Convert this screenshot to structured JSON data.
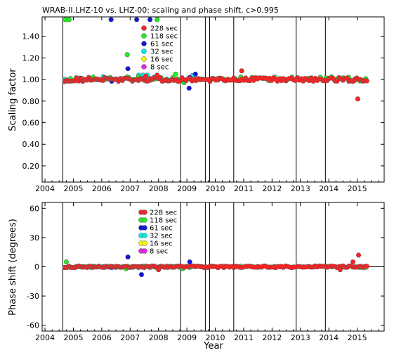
{
  "chart_data": {
    "title": "WRAB-II.LHZ-10 vs. LHZ-00: scaling and phase shift, c>0.995",
    "series_colors": {
      "228 sec": "#ff2222",
      "118 sec": "#22ee22",
      "61 sec": "#1111dd",
      "32 sec": "#00eeee",
      "16 sec": "#ffff00",
      "8 sec": "#ee22ee"
    },
    "legend": [
      "228 sec",
      "118 sec",
      "61 sec",
      "32 sec",
      "16 sec",
      "8 sec"
    ],
    "event_lines_x": [
      2004.63,
      2008.78,
      2009.65,
      2009.8,
      2010.65,
      2012.85,
      2013.88
    ],
    "panels": [
      {
        "id": "scaling",
        "type": "scatter",
        "ylabel": "Scaling factor",
        "xlim": [
          2003.9,
          2015.95
        ],
        "ylim": [
          0.05,
          1.58
        ],
        "yticks": [
          0.2,
          0.4,
          0.6,
          0.8,
          1.0,
          1.2,
          1.4
        ],
        "ytick_labels": [
          "0.20",
          "0.40",
          "0.60",
          "0.80",
          "1.00",
          "1.20",
          "1.40"
        ],
        "xticks": [
          2004,
          2005,
          2006,
          2007,
          2008,
          2009,
          2010,
          2011,
          2012,
          2013,
          2014,
          2015
        ],
        "xtick_labels": [
          "2004",
          "2005",
          "2006",
          "2007",
          "2008",
          "2009",
          "2010",
          "2011",
          "2012",
          "2013",
          "2014",
          "2015"
        ],
        "ref_line": 1.0,
        "ref_segments": [
          [
            2004.63,
            2006.9
          ],
          [
            2007.5,
            2008.8
          ]
        ],
        "series": [
          {
            "name": "228 sec",
            "start": 2004.7,
            "end": 2015.4,
            "step": 0.07,
            "base": 1.0,
            "jitter": 0.018,
            "extra": [
              [
                2010.93,
                1.08
              ],
              [
                2015.02,
                0.82
              ],
              [
                2007.55,
                1.03
              ],
              [
                2007.95,
                1.04
              ],
              [
                2014.8,
                0.99
              ]
            ]
          },
          {
            "name": "118 sec",
            "start": 2004.7,
            "end": 2015.4,
            "step": 0.2,
            "base": 1.005,
            "jitter": 0.02,
            "extra": [
              [
                2004.72,
                1.555
              ],
              [
                2004.85,
                1.555
              ],
              [
                2006.9,
                1.23
              ],
              [
                2007.95,
                1.555
              ],
              [
                2008.9,
                0.97
              ],
              [
                2008.6,
                1.05
              ],
              [
                2010.9,
                1.02
              ]
            ]
          },
          {
            "name": "61 sec",
            "start": 2004.7,
            "end": 2009.6,
            "step": 0.55,
            "base": 1.0,
            "jitter": 0.02,
            "extra": [
              [
                2006.33,
                1.555
              ],
              [
                2006.92,
                1.1
              ],
              [
                2007.23,
                1.555
              ],
              [
                2007.7,
                1.555
              ],
              [
                2009.08,
                0.92
              ],
              [
                2009.3,
                1.05
              ]
            ]
          },
          {
            "name": "32 sec",
            "start": 2004.7,
            "end": 2009.6,
            "step": 0.45,
            "base": 1.02,
            "jitter": 0.02,
            "extra": [
              [
                2007.3,
                1.04
              ],
              [
                2007.45,
                1.04
              ],
              [
                2007.6,
                1.04
              ],
              [
                2009.55,
                1.0
              ]
            ]
          },
          {
            "name": "16 sec",
            "start": 2009.6,
            "end": 2009.6,
            "step": 1.0,
            "base": 1.0,
            "jitter": 0.0,
            "extra": []
          },
          {
            "name": "8 sec",
            "start": 2009.6,
            "end": 2009.6,
            "step": 1.0,
            "base": 1.0,
            "jitter": 0.0,
            "extra": []
          }
        ]
      },
      {
        "id": "phase",
        "type": "scatter",
        "ylabel": "Phase shift (degrees)",
        "xlim": [
          2003.9,
          2015.95
        ],
        "ylim": [
          -66,
          66
        ],
        "yticks": [
          -60,
          -30,
          0,
          30,
          60
        ],
        "ytick_labels": [
          "-60",
          "-30",
          "0",
          "30",
          "60"
        ],
        "xticks": [
          2004,
          2005,
          2006,
          2007,
          2008,
          2009,
          2010,
          2011,
          2012,
          2013,
          2014,
          2015
        ],
        "xtick_labels": [
          "2004",
          "2005",
          "2006",
          "2007",
          "2008",
          "2009",
          "2010",
          "2011",
          "2012",
          "2013",
          "2014",
          "2015"
        ],
        "xlabel": "Year",
        "ref_line": 0,
        "ref_segments": [
          [
            2004.63,
            2015.95
          ]
        ],
        "series": [
          {
            "name": "228 sec",
            "start": 2004.7,
            "end": 2015.4,
            "step": 0.07,
            "base": 0,
            "jitter": 0.8,
            "extra": [
              [
                2015.05,
                12
              ],
              [
                2014.85,
                5
              ],
              [
                2014.4,
                -3
              ],
              [
                2008.0,
                -3
              ]
            ]
          },
          {
            "name": "118 sec",
            "start": 2004.7,
            "end": 2015.4,
            "step": 0.2,
            "base": 0,
            "jitter": 0.8,
            "extra": [
              [
                2004.75,
                5
              ],
              [
                2006.85,
                -2
              ],
              [
                2008.85,
                -2
              ]
            ]
          },
          {
            "name": "61 sec",
            "start": 2004.7,
            "end": 2009.6,
            "step": 0.55,
            "base": 0,
            "jitter": 0.8,
            "extra": [
              [
                2006.92,
                10
              ],
              [
                2007.4,
                -8
              ],
              [
                2009.1,
                5
              ]
            ]
          },
          {
            "name": "32 sec",
            "start": 2004.7,
            "end": 2009.6,
            "step": 0.45,
            "base": 0,
            "jitter": 0.6,
            "extra": [
              [
                2007.3,
                0
              ],
              [
                2007.5,
                0
              ],
              [
                2009.55,
                0
              ]
            ]
          },
          {
            "name": "16 sec",
            "start": 2009.6,
            "end": 2009.6,
            "step": 1.0,
            "base": 0,
            "jitter": 0.0,
            "extra": []
          },
          {
            "name": "8 sec",
            "start": 2009.6,
            "end": 2009.6,
            "step": 1.0,
            "base": 0,
            "jitter": 0.0,
            "extra": []
          }
        ]
      }
    ]
  }
}
